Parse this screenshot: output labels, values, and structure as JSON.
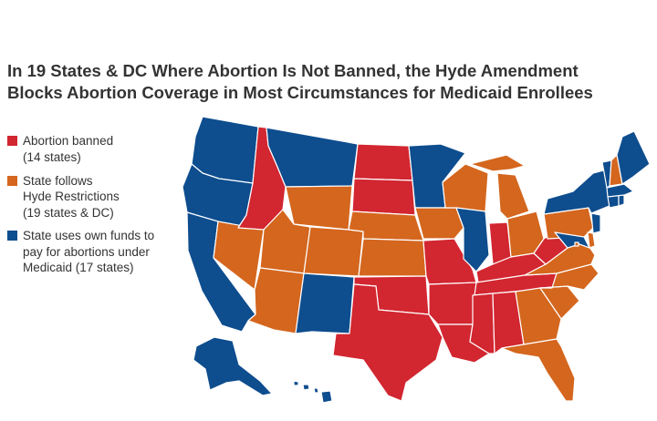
{
  "title_line1": "In 19 States & DC Where Abortion Is Not Banned, the Hyde Amendment",
  "title_line2": "Blocks Abortion Coverage in Most Circumstances for Medicaid Enrollees",
  "legend": {
    "banned": {
      "label": "Abortion banned",
      "note": "(14 states)",
      "color": "#d22630"
    },
    "hyde": {
      "label_line1": "State follows",
      "label_line2": "Hyde Restrictions",
      "note": "(19 states & DC)",
      "color": "#d4661e"
    },
    "own_funds": {
      "label_line1": "State uses own funds to",
      "label_line2": "pay for abortions under",
      "label_line3": "Medicaid (17 states)",
      "color": "#0e4d8e"
    }
  },
  "states": {
    "banned": [
      "ID",
      "ND",
      "SD",
      "OK",
      "TX",
      "MO",
      "AR",
      "LA",
      "MS",
      "AL",
      "TN",
      "KY",
      "IN",
      "WV"
    ],
    "hyde": [
      "NV",
      "UT",
      "AZ",
      "WY",
      "CO",
      "NE",
      "KS",
      "IA",
      "WI",
      "MI",
      "OH",
      "PA",
      "NH",
      "DE",
      "VA",
      "NC",
      "SC",
      "GA",
      "FL",
      "DC"
    ],
    "own_funds": [
      "WA",
      "OR",
      "CA",
      "MT",
      "NM",
      "MN",
      "IL",
      "NY",
      "VT",
      "ME",
      "MA",
      "RI",
      "CT",
      "NJ",
      "MD",
      "AK",
      "HI"
    ]
  }
}
